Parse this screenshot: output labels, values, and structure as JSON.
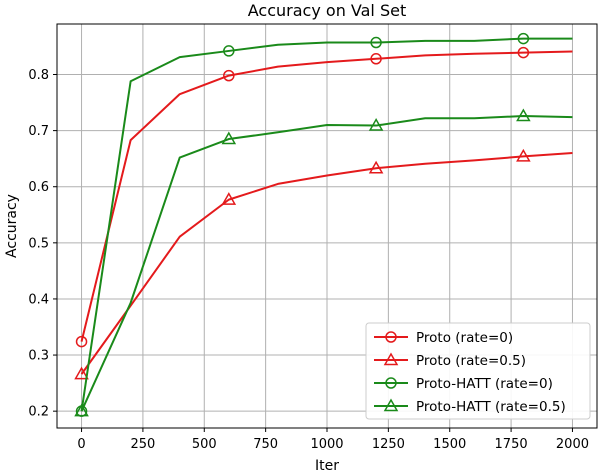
{
  "chart_data": {
    "type": "line",
    "title": "Accuracy on Val Set",
    "xlabel": "Iter",
    "ylabel": "Accuracy",
    "xlim": [
      -100,
      2100
    ],
    "ylim": [
      0.17,
      0.89
    ],
    "xticks": [
      0,
      250,
      500,
      750,
      1000,
      1250,
      1500,
      1750,
      2000
    ],
    "yticks": [
      0.2,
      0.3,
      0.4,
      0.5,
      0.6,
      0.7,
      0.8
    ],
    "xtick_labels": [
      "0",
      "250",
      "500",
      "750",
      "1000",
      "1250",
      "1500",
      "1750",
      "2000"
    ],
    "ytick_labels": [
      "0.2",
      "0.3",
      "0.4",
      "0.5",
      "0.6",
      "0.7",
      "0.8"
    ],
    "grid": true,
    "legend_position": "bottom-right",
    "series": [
      {
        "name": "Proto (rate=0)",
        "color": "#e41a1c",
        "marker": "circle",
        "x": [
          0,
          200,
          400,
          600,
          800,
          1000,
          1200,
          1400,
          1600,
          1800,
          2000
        ],
        "y": [
          0.324,
          0.683,
          0.765,
          0.798,
          0.814,
          0.822,
          0.828,
          0.834,
          0.837,
          0.839,
          0.841
        ],
        "marker_x": [
          0,
          600,
          1200,
          1800
        ]
      },
      {
        "name": "Proto (rate=0.5)",
        "color": "#e41a1c",
        "marker": "triangle",
        "x": [
          0,
          200,
          400,
          600,
          800,
          1000,
          1200,
          1400,
          1600,
          1800,
          2000
        ],
        "y": [
          0.266,
          0.388,
          0.511,
          0.577,
          0.605,
          0.62,
          0.633,
          0.641,
          0.647,
          0.654,
          0.66
        ],
        "marker_x": [
          0,
          600,
          1200,
          1800
        ]
      },
      {
        "name": "Proto-HATT (rate=0)",
        "color": "#1a8a1a",
        "marker": "circle",
        "x": [
          0,
          200,
          400,
          600,
          800,
          1000,
          1200,
          1400,
          1600,
          1800,
          2000
        ],
        "y": [
          0.2,
          0.788,
          0.831,
          0.842,
          0.853,
          0.857,
          0.857,
          0.86,
          0.86,
          0.864,
          0.864
        ],
        "marker_x": [
          0,
          600,
          1200,
          1800
        ]
      },
      {
        "name": "Proto-HATT (rate=0.5)",
        "color": "#1a8a1a",
        "marker": "triangle",
        "x": [
          0,
          200,
          400,
          600,
          800,
          1000,
          1200,
          1400,
          1600,
          1800,
          2000
        ],
        "y": [
          0.2,
          0.393,
          0.652,
          0.685,
          0.697,
          0.71,
          0.709,
          0.722,
          0.722,
          0.726,
          0.724
        ],
        "marker_x": [
          0,
          600,
          1200,
          1800
        ]
      }
    ]
  }
}
